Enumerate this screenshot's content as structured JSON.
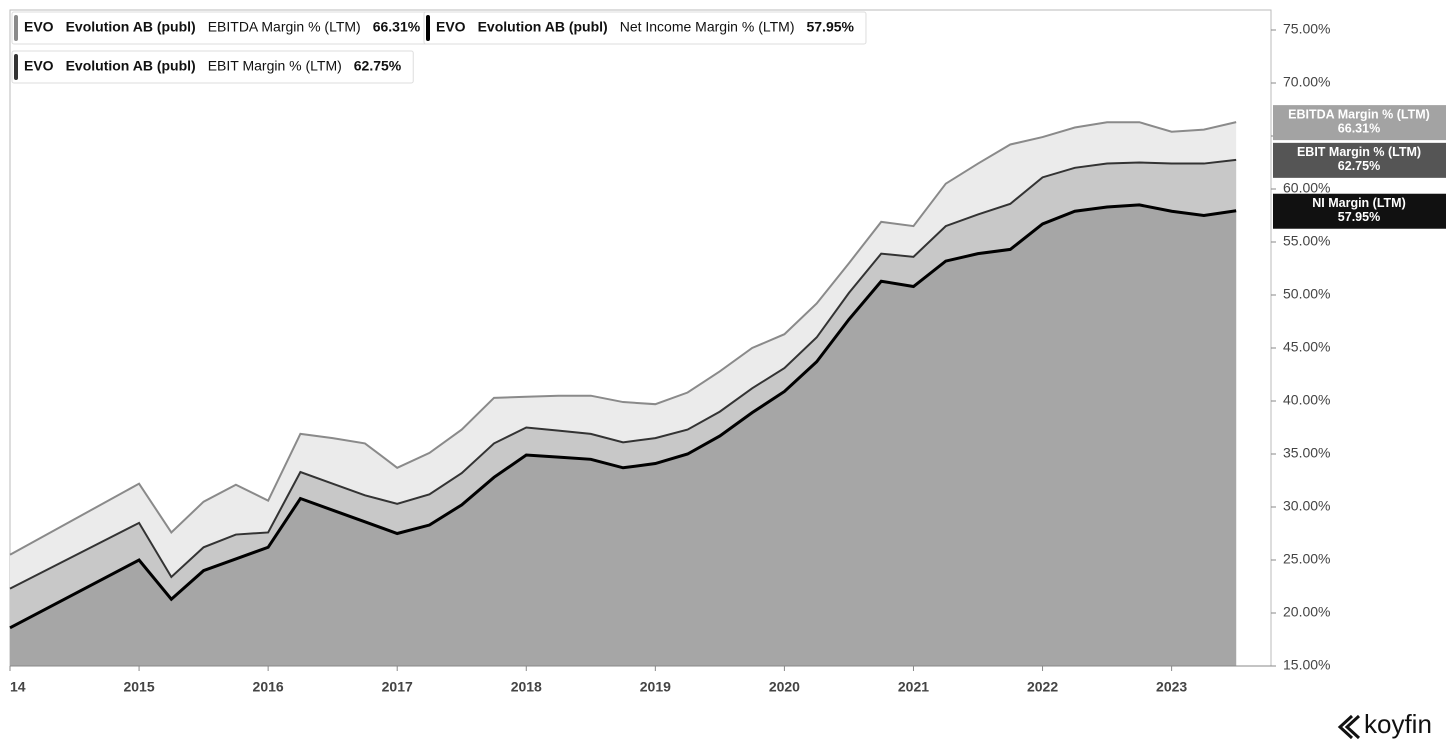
{
  "chart_data": {
    "type": "area",
    "x": [
      2014,
      2015,
      2015.25,
      2015.5,
      2015.75,
      2016,
      2016.25,
      2016.5,
      2016.75,
      2017,
      2017.25,
      2017.5,
      2017.75,
      2018,
      2018.25,
      2018.5,
      2018.75,
      2019,
      2019.25,
      2019.5,
      2019.75,
      2020,
      2020.25,
      2020.5,
      2020.75,
      2021,
      2021.25,
      2021.5,
      2021.75,
      2022,
      2022.25,
      2022.5,
      2022.75,
      2023,
      2023.25,
      2023.5
    ],
    "series": [
      {
        "ticker": "EVO",
        "company": "Evolution AB (publ)",
        "name": "EBITDA Margin % (LTM)",
        "tag_name": "EBITDA Margin % (LTM)",
        "last_label": "66.31%",
        "color": "#8a8a8a",
        "fill": "#ebebeb",
        "tag_color": "#a3a3a3",
        "values": [
          25.5,
          32.2,
          27.6,
          30.5,
          32.1,
          30.6,
          36.9,
          36.5,
          36.0,
          33.7,
          35.1,
          37.3,
          40.3,
          40.4,
          40.5,
          40.5,
          39.9,
          39.7,
          40.8,
          42.8,
          45.0,
          46.3,
          49.2,
          53.0,
          56.9,
          56.5,
          60.5,
          62.4,
          64.2,
          64.9,
          65.8,
          66.3,
          66.3,
          65.4,
          65.6,
          66.31
        ]
      },
      {
        "ticker": "EVO",
        "company": "Evolution AB (publ)",
        "name": "EBIT Margin % (LTM)",
        "tag_name": "EBIT Margin % (LTM)",
        "last_label": "62.75%",
        "color": "#333333",
        "fill": "#c8c8c8",
        "tag_color": "#555555",
        "values": [
          22.3,
          28.5,
          23.4,
          26.2,
          27.4,
          27.6,
          33.3,
          32.2,
          31.1,
          30.3,
          31.2,
          33.2,
          36.0,
          37.5,
          37.2,
          36.9,
          36.1,
          36.5,
          37.3,
          39.0,
          41.2,
          43.1,
          46.0,
          50.2,
          53.9,
          53.6,
          56.5,
          57.6,
          58.6,
          61.1,
          62.0,
          62.4,
          62.5,
          62.4,
          62.4,
          62.75
        ]
      },
      {
        "ticker": "EVO",
        "company": "Evolution AB (publ)",
        "name": "Net Income Margin % (LTM)",
        "tag_name": "NI Margin (LTM)",
        "last_label": "57.95%",
        "color": "#000000",
        "fill": "#a6a6a6",
        "tag_color": "#111111",
        "values": [
          18.6,
          25.0,
          21.3,
          24.0,
          25.1,
          26.2,
          30.8,
          29.7,
          28.6,
          27.5,
          28.3,
          30.2,
          32.8,
          34.9,
          34.7,
          34.5,
          33.7,
          34.1,
          35.0,
          36.7,
          38.9,
          40.9,
          43.7,
          47.7,
          51.3,
          50.8,
          53.2,
          53.9,
          54.3,
          56.7,
          57.9,
          58.3,
          58.5,
          57.9,
          57.5,
          57.95
        ]
      }
    ],
    "xlim": [
      2014,
      2023.77
    ],
    "xticks": [
      {
        "value": 2014,
        "label": "14"
      },
      2015,
      2016,
      2017,
      2018,
      2019,
      2020,
      2021,
      2022,
      2023
    ],
    "ylim": [
      15,
      75
    ],
    "yticks": [
      {
        "value": 15,
        "label": "15.00%"
      },
      {
        "value": 20,
        "label": "20.00%"
      },
      {
        "value": 25,
        "label": "25.00%"
      },
      {
        "value": 30,
        "label": "30.00%"
      },
      {
        "value": 35,
        "label": "35.00%"
      },
      {
        "value": 40,
        "label": "40.00%"
      },
      {
        "value": 45,
        "label": "45.00%"
      },
      {
        "value": 50,
        "label": "50.00%"
      },
      {
        "value": 55,
        "label": "55.00%"
      },
      {
        "value": 60,
        "label": "60.00%"
      },
      {
        "value": 65,
        "label": "65.00%"
      },
      {
        "value": 70,
        "label": "70.00%"
      },
      {
        "value": 75,
        "label": "75.00%"
      }
    ],
    "legend_order": [
      0,
      2,
      1
    ],
    "branding": "koyfin"
  }
}
